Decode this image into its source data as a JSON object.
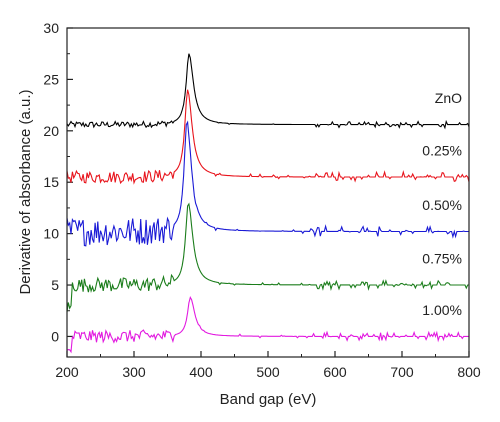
{
  "chart_data": {
    "type": "line",
    "title": "",
    "xlabel": "Band gap (eV)",
    "ylabel": "Derivative of absorbance (a.u.)",
    "xlim": [
      200,
      800
    ],
    "ylim": [
      -2,
      30
    ],
    "xticks": [
      200,
      300,
      400,
      500,
      600,
      700,
      800
    ],
    "yticks": [
      0,
      5,
      10,
      15,
      20,
      25,
      30
    ],
    "grid": false,
    "legend": "none",
    "series": [
      {
        "name": "ZnO",
        "color": "#000000",
        "baseline": 20.6,
        "peak_x": 382,
        "peak_y": 27.5,
        "noise_left": 0.3,
        "noise_right": 0.3
      },
      {
        "name": "0.25%",
        "color": "#e8141c",
        "baseline": 15.5,
        "peak_x": 380,
        "peak_y": 24.0,
        "noise_left": 0.6,
        "noise_right": 0.5
      },
      {
        "name": "0.50%",
        "color": "#1a1ad6",
        "baseline": 10.2,
        "peak_x": 379,
        "peak_y": 21.0,
        "noise_left": 1.4,
        "noise_right": 0.5
      },
      {
        "name": "0.75%",
        "color": "#1b7d1b",
        "baseline": 5.0,
        "peak_x": 381,
        "peak_y": 13.0,
        "noise_left": 0.7,
        "noise_right": 0.4
      },
      {
        "name": "1.00%",
        "color": "#e21ae0",
        "baseline": 0.0,
        "peak_x": 384,
        "peak_y": 3.8,
        "noise_left": 0.6,
        "noise_right": 0.4
      }
    ]
  }
}
